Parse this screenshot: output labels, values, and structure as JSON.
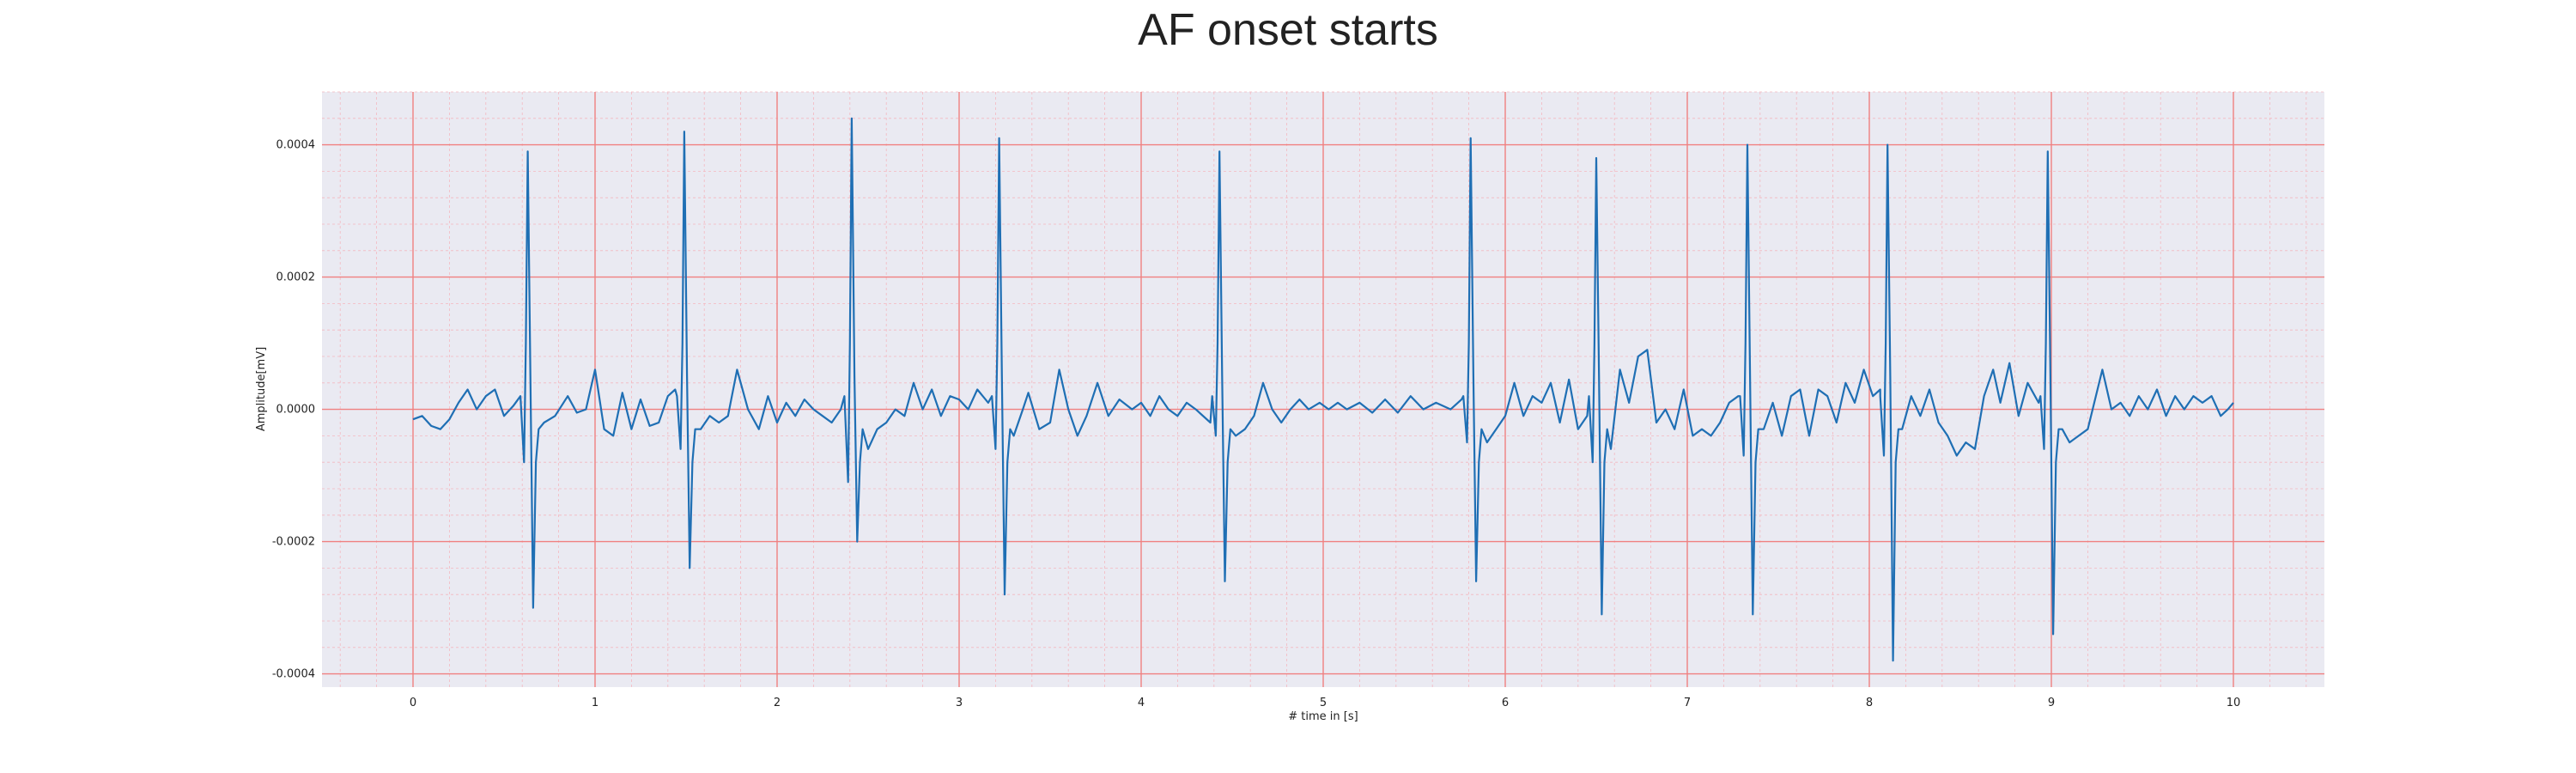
{
  "chart_data": {
    "type": "line",
    "title": "AF onset starts",
    "xlabel": "# time in [s]",
    "ylabel": "Amplitude[mV]",
    "xlim": [
      -0.5,
      10.5
    ],
    "ylim": [
      -0.00042,
      0.00048
    ],
    "x_ticks": [
      0,
      1,
      2,
      3,
      4,
      5,
      6,
      7,
      8,
      9,
      10
    ],
    "x_tick_labels": [
      "0",
      "1",
      "2",
      "3",
      "4",
      "5",
      "6",
      "7",
      "8",
      "9",
      "10"
    ],
    "y_ticks": [
      -0.0004,
      -0.0002,
      0.0,
      0.0002,
      0.0004
    ],
    "y_tick_labels": [
      "-0.0004",
      "-0.0002",
      "0.0000",
      "0.0002",
      "0.0004"
    ],
    "x_minor_step": 0.2,
    "y_minor_step": 4e-05,
    "grid": true,
    "legend": "none",
    "colors": {
      "background": "#eaeaf2",
      "major_grid": "#f08080",
      "minor_grid": "#f4b8c0",
      "line": "#1f6fb4"
    },
    "series": [
      {
        "beats": [
          {
            "t": 0.63,
            "r": 0.00039,
            "q": -8e-05,
            "s": -0.0003
          },
          {
            "t": 1.49,
            "r": 0.00042,
            "q": -6e-05,
            "s": -0.00024
          },
          {
            "t": 2.41,
            "r": 0.00044,
            "q": -0.00011,
            "s": -0.0002
          },
          {
            "t": 3.22,
            "r": 0.00041,
            "q": -6e-05,
            "s": -0.00028
          },
          {
            "t": 4.43,
            "r": 0.00039,
            "q": -4e-05,
            "s": -0.00026
          },
          {
            "t": 5.81,
            "r": 0.00041,
            "q": -5e-05,
            "s": -0.00026
          },
          {
            "t": 6.5,
            "r": 0.00038,
            "q": -8e-05,
            "s": -0.00031
          },
          {
            "t": 7.33,
            "r": 0.0004,
            "q": -7e-05,
            "s": -0.00031
          },
          {
            "t": 8.1,
            "r": 0.0004,
            "q": -7e-05,
            "s": -0.00038
          },
          {
            "t": 8.98,
            "r": 0.00039,
            "q": -6e-05,
            "s": -0.00034
          }
        ],
        "baseline": [
          [
            0.0,
            -1.5e-05
          ],
          [
            0.05,
            -1e-05
          ],
          [
            0.1,
            -2.5e-05
          ],
          [
            0.15,
            -3e-05
          ],
          [
            0.2,
            -1.5e-05
          ],
          [
            0.25,
            1e-05
          ],
          [
            0.3,
            3e-05
          ],
          [
            0.35,
            0.0
          ],
          [
            0.4,
            2e-05
          ],
          [
            0.45,
            3e-05
          ],
          [
            0.5,
            -1e-05
          ],
          [
            0.55,
            5e-06
          ],
          [
            0.72,
            -2e-05
          ],
          [
            0.78,
            -1e-05
          ],
          [
            0.85,
            2e-05
          ],
          [
            0.9,
            -5e-06
          ],
          [
            0.95,
            0.0
          ],
          [
            1.0,
            6e-05
          ],
          [
            1.05,
            -3e-05
          ],
          [
            1.1,
            -4e-05
          ],
          [
            1.15,
            2.5e-05
          ],
          [
            1.2,
            -3e-05
          ],
          [
            1.25,
            1.5e-05
          ],
          [
            1.3,
            -2.5e-05
          ],
          [
            1.35,
            -2e-05
          ],
          [
            1.4,
            2e-05
          ],
          [
            1.44,
            3e-05
          ],
          [
            1.58,
            -3e-05
          ],
          [
            1.63,
            -1e-05
          ],
          [
            1.68,
            -2e-05
          ],
          [
            1.73,
            -1e-05
          ],
          [
            1.78,
            6e-05
          ],
          [
            1.84,
            0.0
          ],
          [
            1.9,
            -3e-05
          ],
          [
            1.95,
            2e-05
          ],
          [
            2.0,
            -2e-05
          ],
          [
            2.05,
            1e-05
          ],
          [
            2.1,
            -1e-05
          ],
          [
            2.15,
            1.5e-05
          ],
          [
            2.2,
            0.0
          ],
          [
            2.25,
            -1e-05
          ],
          [
            2.3,
            -2e-05
          ],
          [
            2.35,
            0.0
          ],
          [
            2.5,
            -6e-05
          ],
          [
            2.55,
            -3e-05
          ],
          [
            2.6,
            -2e-05
          ],
          [
            2.65,
            0.0
          ],
          [
            2.7,
            -1e-05
          ],
          [
            2.75,
            4e-05
          ],
          [
            2.8,
            0.0
          ],
          [
            2.85,
            3e-05
          ],
          [
            2.9,
            -1e-05
          ],
          [
            2.95,
            2e-05
          ],
          [
            3.0,
            1.5e-05
          ],
          [
            3.05,
            0.0
          ],
          [
            3.1,
            3e-05
          ],
          [
            3.16,
            1e-05
          ],
          [
            3.3,
            -4e-05
          ],
          [
            3.35,
            0.0
          ],
          [
            3.38,
            2.5e-05
          ],
          [
            3.44,
            -3e-05
          ],
          [
            3.5,
            -2e-05
          ],
          [
            3.55,
            6e-05
          ],
          [
            3.6,
            0.0
          ],
          [
            3.65,
            -4e-05
          ],
          [
            3.7,
            -1e-05
          ],
          [
            3.76,
            4e-05
          ],
          [
            3.82,
            -1e-05
          ],
          [
            3.88,
            1.5e-05
          ],
          [
            3.95,
            0.0
          ],
          [
            4.0,
            1e-05
          ],
          [
            4.05,
            -1e-05
          ],
          [
            4.1,
            2e-05
          ],
          [
            4.15,
            0.0
          ],
          [
            4.2,
            -1e-05
          ],
          [
            4.25,
            1e-05
          ],
          [
            4.3,
            0.0
          ],
          [
            4.38,
            -2e-05
          ],
          [
            4.52,
            -4e-05
          ],
          [
            4.57,
            -3e-05
          ],
          [
            4.62,
            -1e-05
          ],
          [
            4.67,
            4e-05
          ],
          [
            4.72,
            0.0
          ],
          [
            4.77,
            -2e-05
          ],
          [
            4.82,
            0.0
          ],
          [
            4.87,
            1.5e-05
          ],
          [
            4.92,
            0.0
          ],
          [
            4.98,
            1e-05
          ],
          [
            5.03,
            0.0
          ],
          [
            5.08,
            1e-05
          ],
          [
            5.13,
            0.0
          ],
          [
            5.2,
            1e-05
          ],
          [
            5.27,
            -5e-06
          ],
          [
            5.34,
            1.5e-05
          ],
          [
            5.41,
            -5e-06
          ],
          [
            5.48,
            2e-05
          ],
          [
            5.55,
            0.0
          ],
          [
            5.62,
            1e-05
          ],
          [
            5.7,
            0.0
          ],
          [
            5.76,
            1.5e-05
          ],
          [
            5.9,
            -5e-05
          ],
          [
            5.95,
            -3e-05
          ],
          [
            6.0,
            -1e-05
          ],
          [
            6.05,
            4e-05
          ],
          [
            6.1,
            -1e-05
          ],
          [
            6.15,
            2e-05
          ],
          [
            6.2,
            1e-05
          ],
          [
            6.25,
            4e-05
          ],
          [
            6.3,
            -2e-05
          ],
          [
            6.35,
            4.5e-05
          ],
          [
            6.4,
            -3e-05
          ],
          [
            6.45,
            -1e-05
          ],
          [
            6.58,
            -6e-05
          ],
          [
            6.63,
            6e-05
          ],
          [
            6.68,
            1e-05
          ],
          [
            6.73,
            8e-05
          ],
          [
            6.78,
            9e-05
          ],
          [
            6.83,
            -2e-05
          ],
          [
            6.88,
            0.0
          ],
          [
            6.93,
            -3e-05
          ],
          [
            6.98,
            3e-05
          ],
          [
            7.03,
            -4e-05
          ],
          [
            7.08,
            -3e-05
          ],
          [
            7.13,
            -4e-05
          ],
          [
            7.18,
            -2e-05
          ],
          [
            7.23,
            1e-05
          ],
          [
            7.28,
            2e-05
          ],
          [
            7.42,
            -3e-05
          ],
          [
            7.47,
            1e-05
          ],
          [
            7.52,
            -4e-05
          ],
          [
            7.57,
            2e-05
          ],
          [
            7.62,
            3e-05
          ],
          [
            7.67,
            -4e-05
          ],
          [
            7.72,
            3e-05
          ],
          [
            7.77,
            2e-05
          ],
          [
            7.82,
            -2e-05
          ],
          [
            7.87,
            4e-05
          ],
          [
            7.92,
            1e-05
          ],
          [
            7.97,
            6e-05
          ],
          [
            8.02,
            2e-05
          ],
          [
            8.06,
            3e-05
          ],
          [
            8.18,
            -3e-05
          ],
          [
            8.23,
            2e-05
          ],
          [
            8.28,
            -1e-05
          ],
          [
            8.33,
            3e-05
          ],
          [
            8.38,
            -2e-05
          ],
          [
            8.43,
            -4e-05
          ],
          [
            8.48,
            -7e-05
          ],
          [
            8.53,
            -5e-05
          ],
          [
            8.58,
            -6e-05
          ],
          [
            8.63,
            2e-05
          ],
          [
            8.68,
            6e-05
          ],
          [
            8.72,
            1e-05
          ],
          [
            8.77,
            7e-05
          ],
          [
            8.82,
            -1e-05
          ],
          [
            8.87,
            4e-05
          ],
          [
            8.93,
            1e-05
          ],
          [
            9.06,
            -3e-05
          ],
          [
            9.1,
            -5e-05
          ],
          [
            9.15,
            -4e-05
          ],
          [
            9.2,
            -3e-05
          ],
          [
            9.28,
            6e-05
          ],
          [
            9.33,
            0.0
          ],
          [
            9.38,
            1e-05
          ],
          [
            9.43,
            -1e-05
          ],
          [
            9.48,
            2e-05
          ],
          [
            9.53,
            0.0
          ],
          [
            9.58,
            3e-05
          ],
          [
            9.63,
            -1e-05
          ],
          [
            9.68,
            2e-05
          ],
          [
            9.73,
            0.0
          ],
          [
            9.78,
            2e-05
          ],
          [
            9.83,
            1e-05
          ],
          [
            9.88,
            2e-05
          ],
          [
            9.93,
            -1e-05
          ],
          [
            9.97,
            0.0
          ],
          [
            10.0,
            1e-05
          ]
        ]
      }
    ]
  }
}
